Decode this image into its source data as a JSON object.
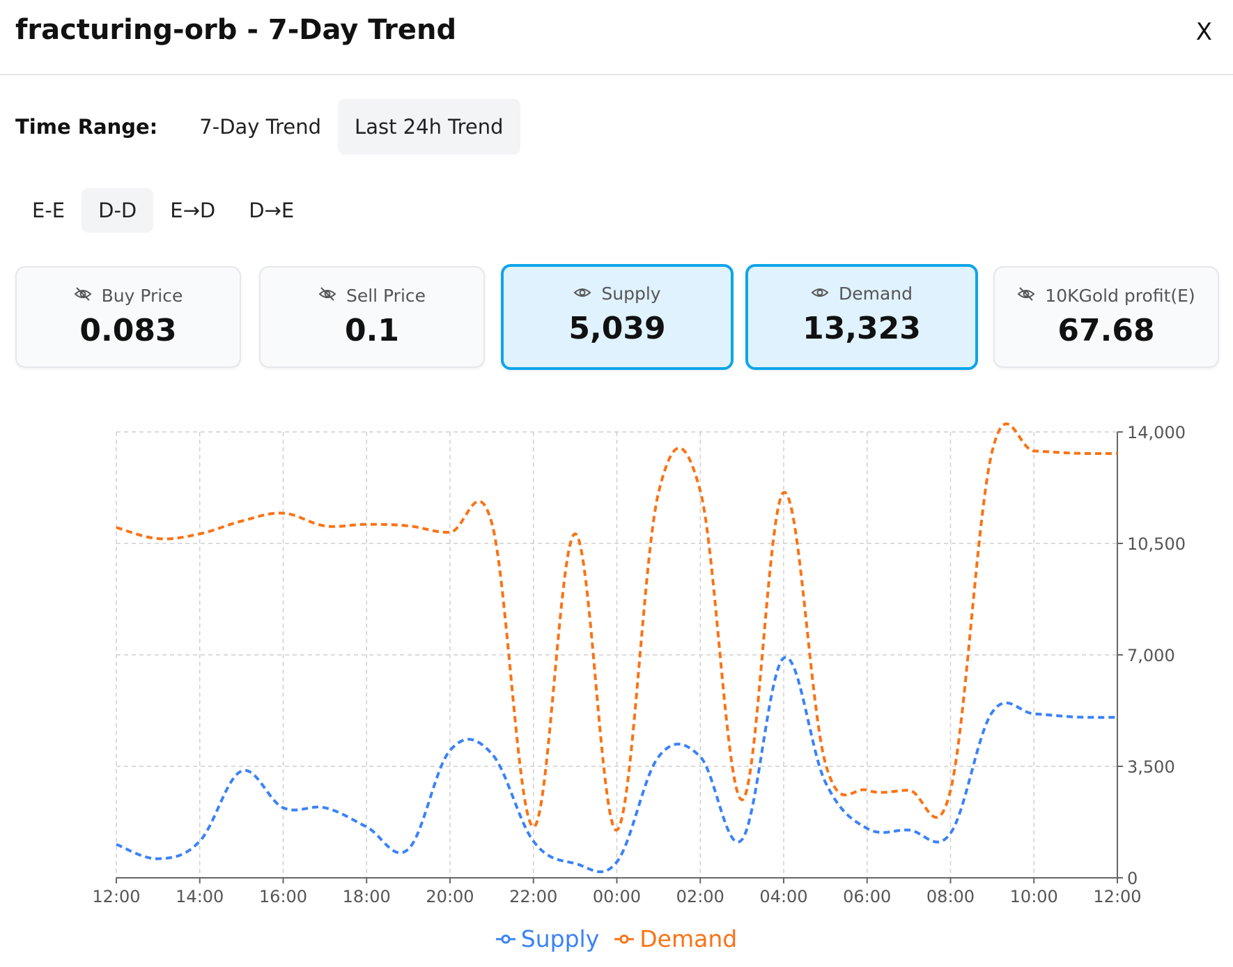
{
  "header": {
    "title": "fracturing-orb - 7-Day Trend",
    "close_label": "X"
  },
  "time_range": {
    "label": "Time Range:",
    "options": [
      "7-Day Trend",
      "Last 24h Trend"
    ],
    "selected": "Last 24h Trend"
  },
  "modes": {
    "options": [
      "E-E",
      "D-D",
      "E→D",
      "D→E"
    ],
    "selected": "D-D"
  },
  "cards": [
    {
      "label": "Buy Price",
      "value": "0.083",
      "icon": "eye-off-icon",
      "active": false
    },
    {
      "label": "Sell Price",
      "value": "0.1",
      "icon": "eye-off-icon",
      "active": false
    },
    {
      "label": "Supply",
      "value": "5,039",
      "icon": "eye-icon",
      "active": true
    },
    {
      "label": "Demand",
      "value": "13,323",
      "icon": "eye-icon",
      "active": true
    },
    {
      "label": "10KGold profit(E)",
      "value": "67.68",
      "icon": "eye-off-icon",
      "active": false
    }
  ],
  "chart_data": {
    "type": "line",
    "x": [
      "12:00",
      "13:00",
      "14:00",
      "15:00",
      "16:00",
      "17:00",
      "18:00",
      "19:00",
      "20:00",
      "21:00",
      "22:00",
      "23:00",
      "00:00",
      "01:00",
      "02:00",
      "03:00",
      "04:00",
      "05:00",
      "06:00",
      "07:00",
      "08:00",
      "09:00",
      "10:00",
      "11:00",
      "12:00"
    ],
    "x_tick_labels": [
      "12:00",
      "14:00",
      "16:00",
      "18:00",
      "20:00",
      "22:00",
      "00:00",
      "02:00",
      "04:00",
      "06:00",
      "08:00",
      "10:00",
      "12:00"
    ],
    "y_ticks": [
      0,
      3500,
      7000,
      10500,
      14000
    ],
    "y_tick_labels": [
      "0",
      "3,500",
      "7,000",
      "10,500",
      "14,000"
    ],
    "ylim": [
      0,
      14000
    ],
    "y_axis_side": "right",
    "grid": true,
    "line_style": "dashed",
    "legend_position": "bottom-center",
    "series": [
      {
        "name": "Supply",
        "color": "#3b82f6",
        "values": [
          1050,
          600,
          1150,
          3350,
          2200,
          2200,
          1600,
          900,
          4000,
          3900,
          1150,
          450,
          500,
          3800,
          3800,
          1200,
          6900,
          3000,
          1550,
          1500,
          1400,
          5200,
          5150,
          5050,
          5039
        ]
      },
      {
        "name": "Demand",
        "color": "#f97316",
        "values": [
          11000,
          10650,
          10800,
          11200,
          11450,
          11050,
          11100,
          11050,
          10850,
          11150,
          1600,
          10800,
          1500,
          12100,
          12150,
          2450,
          12100,
          3600,
          2750,
          2750,
          2750,
          13400,
          13400,
          13330,
          13323
        ]
      }
    ]
  }
}
